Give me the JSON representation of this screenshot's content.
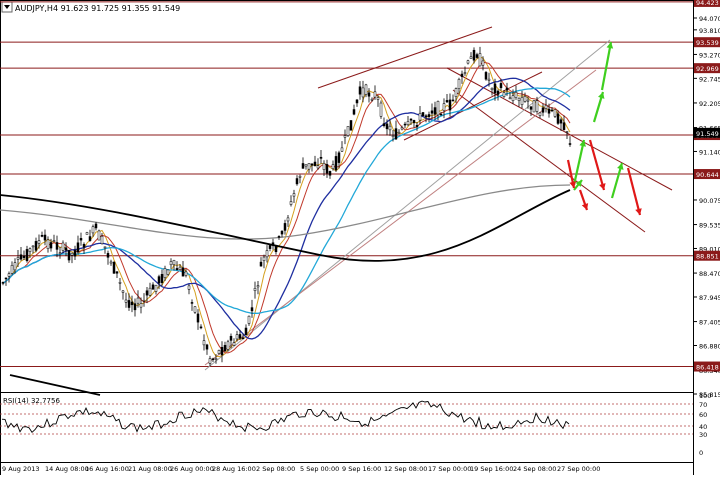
{
  "chart_header": {
    "symbol_info": "AUDJPY,H4  91.623 91.725 91.355 91.549",
    "menu_icon": "triangle-down-icon"
  },
  "rsi_header": "RSI(14) 32.7756",
  "price_axis_labels": [
    "94.070",
    "93.810",
    "93.270",
    "92.745",
    "92.205",
    "91.665",
    "91.140",
    "90.600",
    "90.075",
    "89.535",
    "89.010",
    "88.470",
    "87.945",
    "87.405",
    "86.880",
    "86.340",
    "85.815"
  ],
  "price_ticks_values": [
    94.07,
    93.81,
    93.27,
    92.745,
    92.205,
    91.665,
    91.14,
    90.6,
    90.075,
    89.535,
    89.01,
    88.47,
    87.945,
    87.405,
    86.88,
    86.34,
    85.815
  ],
  "rsi_axis_labels": [
    "100",
    "70",
    "60",
    "40",
    "30",
    "0"
  ],
  "date_axis_labels": [
    "9 Aug 2013",
    "14 Aug 08:00",
    "16 Aug 16:00",
    "21 Aug 08:00",
    "26 Aug 00:00",
    "28 Aug 16:00",
    "2 Sep 08:00",
    "5 Sep 00:00",
    "9 Sep 16:00",
    "12 Sep 08:00",
    "17 Sep 00:00",
    "19 Sep 16:00",
    "24 Sep 08:00",
    "27 Sep 00:00"
  ],
  "level_tags": [
    {
      "label": "94.423",
      "value": 94.423,
      "color": "#8b1a1a"
    },
    {
      "label": "93.539",
      "value": 93.539,
      "color": "#8b1a1a"
    },
    {
      "label": "92.969",
      "value": 92.969,
      "color": "#8b1a1a"
    },
    {
      "label": "91.500",
      "value": 91.5,
      "color": "#8b1a1a"
    },
    {
      "label": "90.644",
      "value": 90.644,
      "color": "#8b1a1a"
    },
    {
      "label": "88.851",
      "value": 88.851,
      "color": "#8b1a1a"
    },
    {
      "label": "86.418",
      "value": 86.418,
      "color": "#8b1a1a"
    }
  ],
  "current_price_tag": {
    "label": "91.549",
    "value": 91.549,
    "color": "#000000"
  },
  "colors": {
    "level_line": "#8b1a1a",
    "candles": "#000000",
    "ma_fast": "#d4a020",
    "ma_mid": "#c0392b",
    "ma_blue": "#1f2fa0",
    "ma_cyan": "#22a8d8",
    "ma_gray": "#8a8a8a",
    "ma_black": "#000000",
    "arrow_green": "#3fcf1f",
    "arrow_red": "#e01818"
  },
  "arrows": {
    "green_count": 5,
    "red_count": 4
  }
}
